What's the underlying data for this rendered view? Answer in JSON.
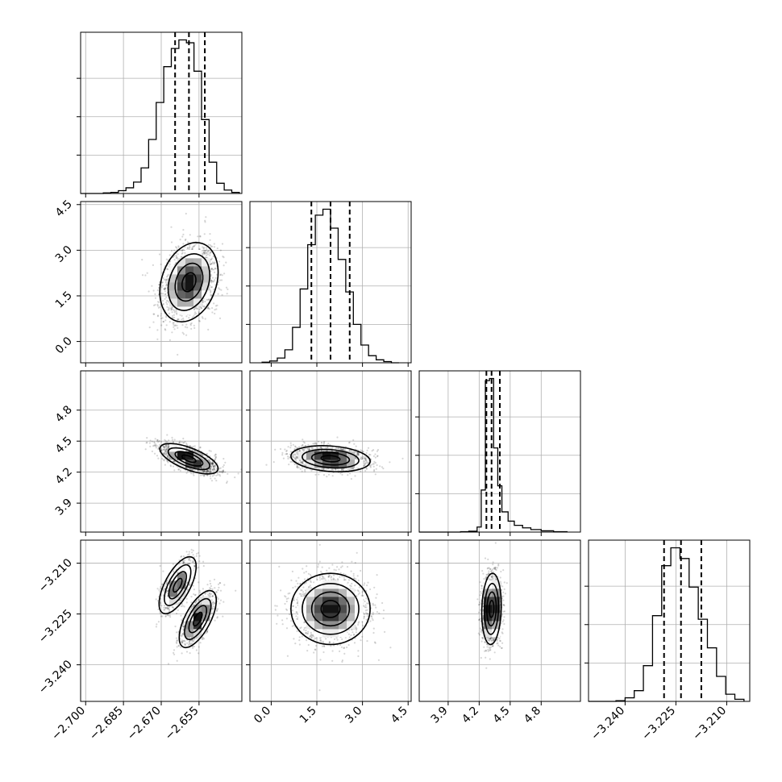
{
  "chart_data": {
    "type": "corner",
    "n_params": 4,
    "grid": true,
    "colors": {
      "hist": "#000000",
      "contour": "#000000",
      "points": "#000000",
      "density_dark": "#000000",
      "density_light": "#ffffff"
    },
    "params": [
      {
        "index": 0,
        "range": [
          -2.702,
          -2.638
        ],
        "tick_values": [
          -2.7,
          -2.685,
          -2.67,
          -2.655
        ],
        "tick_labels": [
          "−2.700",
          "−2.685",
          "−2.670",
          "−2.655"
        ],
        "mean": -2.659,
        "sd": 0.0055,
        "quantiles": [
          -2.6645,
          -2.659,
          -2.6527
        ],
        "hist_bins": [
          -2.702,
          -2.699,
          -2.696,
          -2.693,
          -2.69,
          -2.687,
          -2.684,
          -2.681,
          -2.678,
          -2.675,
          -2.672,
          -2.669,
          -2.666,
          -2.663,
          -2.66,
          -2.657,
          -2.654,
          -2.651,
          -2.648,
          -2.645,
          -2.642,
          -2.639
        ],
        "hist_counts": [
          0,
          0,
          0,
          1,
          2,
          5,
          10,
          20,
          45,
          95,
          160,
          223,
          255,
          270,
          265,
          215,
          130,
          55,
          18,
          6,
          2
        ]
      },
      {
        "index": 1,
        "range": [
          -0.7,
          4.6
        ],
        "tick_values": [
          0.0,
          1.5,
          3.0,
          4.5
        ],
        "tick_labels": [
          "0.0",
          "1.5",
          "3.0",
          "4.5"
        ],
        "mean": 1.95,
        "sd": 0.62,
        "quantiles": [
          1.32,
          1.95,
          2.58
        ],
        "hist_bins": [
          -0.3,
          -0.05,
          0.2,
          0.45,
          0.7,
          0.95,
          1.2,
          1.45,
          1.7,
          1.95,
          2.2,
          2.45,
          2.7,
          2.95,
          3.2,
          3.45,
          3.7,
          3.95,
          4.2
        ],
        "hist_counts": [
          1,
          3,
          8,
          22,
          60,
          125,
          200,
          250,
          260,
          228,
          175,
          120,
          65,
          30,
          12,
          5,
          2,
          0
        ]
      },
      {
        "index": 2,
        "range": [
          3.62,
          5.18
        ],
        "tick_values": [
          3.9,
          4.2,
          4.5,
          4.8
        ],
        "tick_labels": [
          "3.9",
          "4.2",
          "4.5",
          "4.8"
        ],
        "mean": 4.33,
        "sd": 0.05,
        "quantiles": [
          4.27,
          4.32,
          4.4
        ],
        "hist_bins": [
          3.62,
          3.7,
          3.78,
          3.86,
          3.94,
          4.02,
          4.1,
          4.18,
          4.22,
          4.26,
          4.3,
          4.34,
          4.38,
          4.42,
          4.48,
          4.54,
          4.62,
          4.7,
          4.8,
          4.92,
          5.05
        ],
        "hist_counts": [
          0,
          0,
          0,
          0,
          0,
          1,
          2,
          12,
          100,
          360,
          365,
          200,
          110,
          48,
          26,
          16,
          10,
          6,
          3,
          1
        ]
      },
      {
        "index": 3,
        "range": [
          -3.2508,
          -3.2032
        ],
        "tick_values": [
          -3.24,
          -3.225,
          -3.21
        ],
        "tick_labels": [
          "−3.240",
          "−3.225",
          "−3.210"
        ],
        "mean": -3.2235,
        "sd": 0.005,
        "quantiles": [
          -3.2285,
          -3.2235,
          -3.2175
        ],
        "hist_bins": [
          -3.2508,
          -3.2481,
          -3.2454,
          -3.2427,
          -3.24,
          -3.2373,
          -3.2346,
          -3.2319,
          -3.2292,
          -3.2265,
          -3.2238,
          -3.2211,
          -3.2184,
          -3.2157,
          -3.213,
          -3.2103,
          -3.2076,
          -3.2049
        ],
        "hist_counts": [
          0,
          0,
          0,
          1,
          5,
          15,
          50,
          120,
          190,
          215,
          200,
          160,
          115,
          75,
          35,
          10,
          3
        ]
      }
    ],
    "pairs": [
      {
        "x": 0,
        "y": 1,
        "modes": [
          {
            "cx": -2.659,
            "cy": 1.95,
            "sx": 0.0055,
            "sy": 0.62,
            "rho": 0.25,
            "w": 1
          }
        ]
      },
      {
        "x": 0,
        "y": 2,
        "modes": [
          {
            "cx": -2.659,
            "cy": 4.33,
            "sx": 0.0055,
            "sy": 0.07,
            "rho": -0.65,
            "w": 1
          }
        ]
      },
      {
        "x": 1,
        "y": 2,
        "modes": [
          {
            "cx": 1.95,
            "cy": 4.33,
            "sx": 0.62,
            "sy": 0.06,
            "rho": -0.2,
            "w": 1
          }
        ]
      },
      {
        "x": 0,
        "y": 3,
        "modes": [
          {
            "cx": -2.6635,
            "cy": -3.2165,
            "sx": 0.0035,
            "sy": 0.004,
            "rho": 0.65,
            "w": 0.45
          },
          {
            "cx": -2.6555,
            "cy": -3.2265,
            "sx": 0.0035,
            "sy": 0.004,
            "rho": 0.65,
            "w": 0.55
          }
        ]
      },
      {
        "x": 1,
        "y": 3,
        "modes": [
          {
            "cx": 1.95,
            "cy": -3.2235,
            "sx": 0.62,
            "sy": 0.005,
            "rho": 0.0,
            "w": 1
          }
        ]
      },
      {
        "x": 2,
        "y": 3,
        "modes": [
          {
            "cx": 4.32,
            "cy": -3.2235,
            "sx": 0.045,
            "sy": 0.005,
            "rho": 0.1,
            "w": 1
          }
        ]
      }
    ]
  }
}
